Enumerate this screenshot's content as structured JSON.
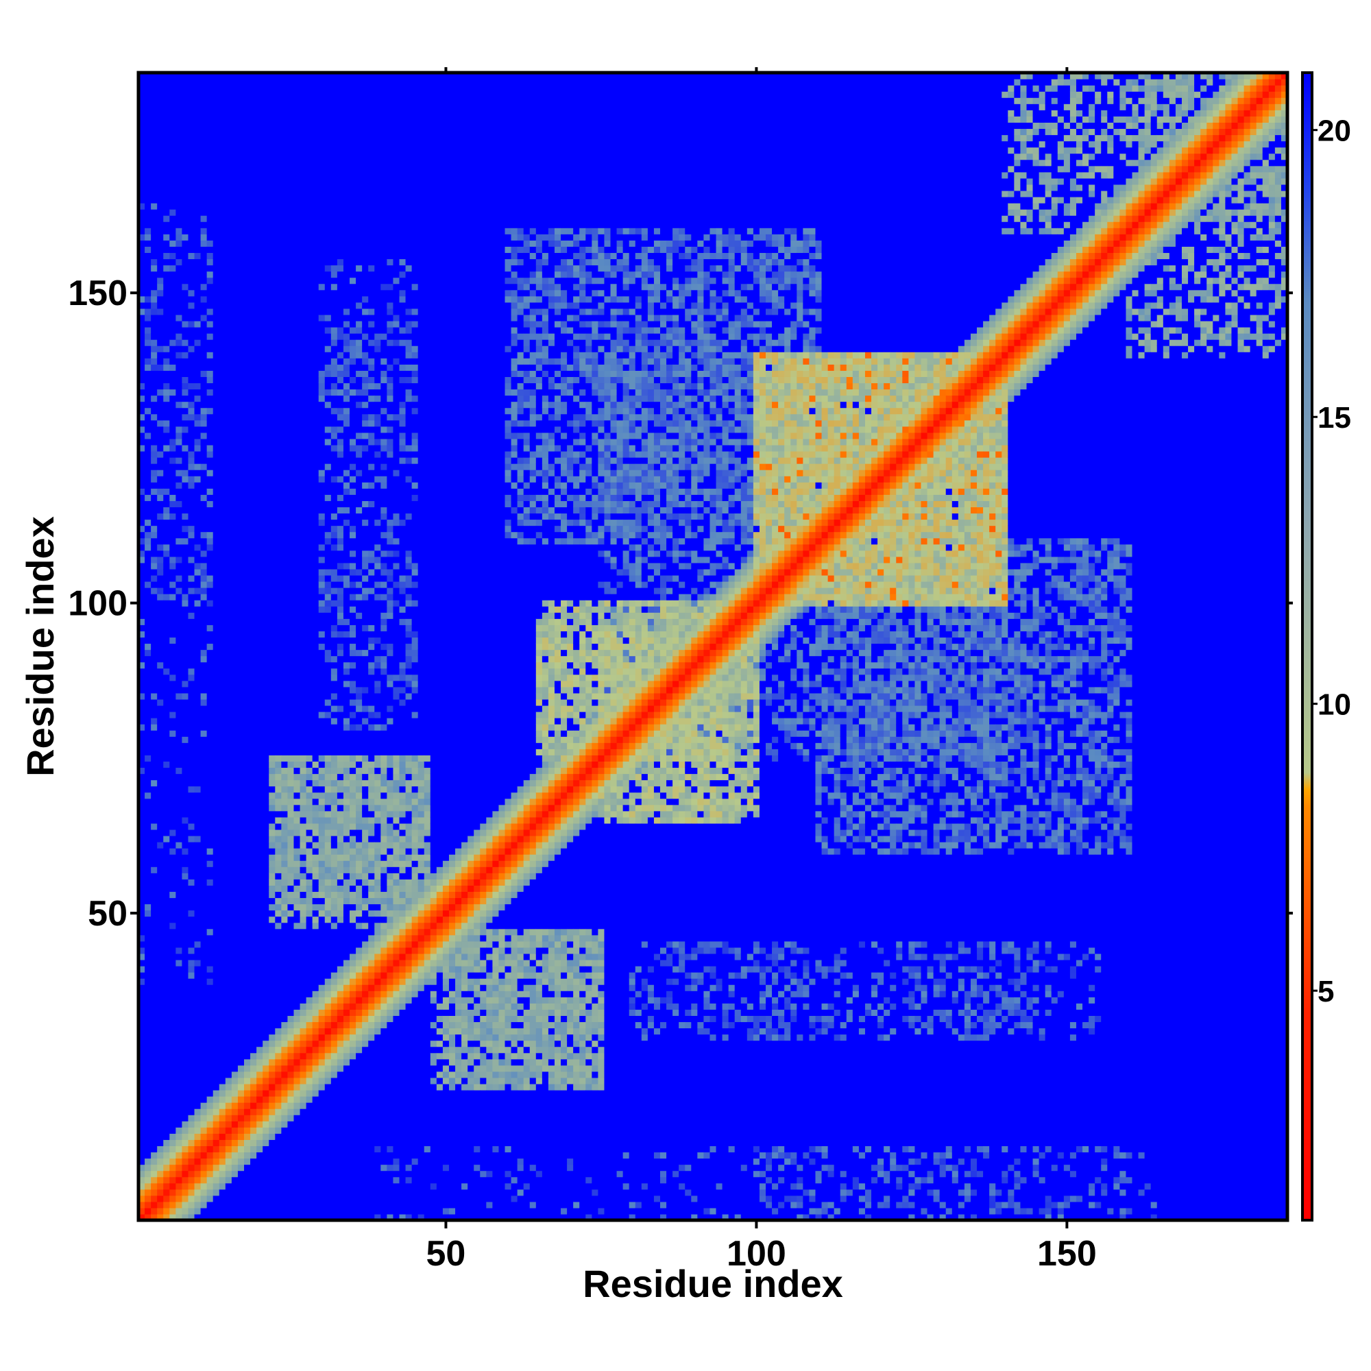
{
  "chart_data": {
    "type": "heatmap",
    "title": "",
    "xlabel": "Residue index",
    "ylabel": "Residue index",
    "n_residues": 185,
    "xlim": [
      1,
      185
    ],
    "ylim": [
      1,
      185
    ],
    "x_ticks": [
      50,
      100,
      150
    ],
    "y_ticks": [
      50,
      100,
      150
    ],
    "colorbar": {
      "range": [
        1,
        21
      ],
      "ticks": [
        5,
        10,
        15,
        20
      ],
      "colors": [
        "#ff0000",
        "#ff8800",
        "#b8c98a",
        "#5b8bc2",
        "#0000ff"
      ],
      "stops": [
        1,
        8.5,
        11,
        16,
        21
      ]
    },
    "diagonal": {
      "value": 1.5,
      "band_width": 8
    },
    "regions": [
      {
        "x": [
          100,
          140
        ],
        "y": [
          100,
          140
        ],
        "level": 11.5,
        "density": 0.9
      },
      {
        "x": [
          65,
          95
        ],
        "y": [
          75,
          100
        ],
        "level": 12,
        "density": 0.8
      },
      {
        "x": [
          22,
          47
        ],
        "y": [
          50,
          75
        ],
        "level": 14,
        "density": 0.6
      },
      {
        "x": [
          48,
          75
        ],
        "y": [
          22,
          47
        ],
        "level": 14,
        "density": 0.6
      },
      {
        "x": [
          75,
          140
        ],
        "y": [
          75,
          100
        ],
        "level": 17,
        "density": 0.4
      },
      {
        "x": [
          60,
          110
        ],
        "y": [
          110,
          160
        ],
        "level": 17,
        "density": 0.35
      },
      {
        "x": [
          110,
          160
        ],
        "y": [
          60,
          110
        ],
        "level": 17,
        "density": 0.35
      },
      {
        "x": [
          1,
          12
        ],
        "y": [
          100,
          160
        ],
        "level": 17.5,
        "density": 0.25
      },
      {
        "x": [
          30,
          45
        ],
        "y": [
          100,
          145
        ],
        "level": 17.5,
        "density": 0.3
      },
      {
        "x": [
          80,
          105
        ],
        "y": [
          30,
          45
        ],
        "level": 17.5,
        "density": 0.35
      },
      {
        "x": [
          125,
          155
        ],
        "y": [
          30,
          45
        ],
        "level": 17.5,
        "density": 0.2
      },
      {
        "x": [
          35,
          165
        ],
        "y": [
          1,
          12
        ],
        "level": 17.5,
        "density": 0.12
      },
      {
        "x": [
          160,
          185
        ],
        "y": [
          140,
          185
        ],
        "level": 14,
        "density": 0.4
      }
    ]
  }
}
